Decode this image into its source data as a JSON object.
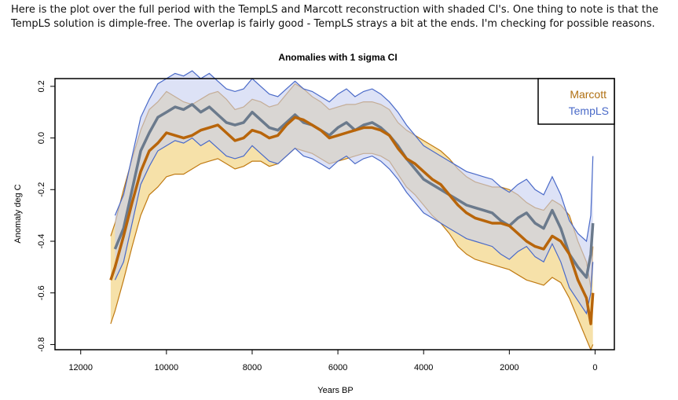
{
  "intro_text": "Here is the plot over the full period with the TempLS and Marcott reconstruction with shaded CI's. One thing to note is that the TempLS solution is dimple-free. The overlap is fairly good - TempLS strays a bit at the ends. I'm checking for possible reasons.",
  "chart_data": {
    "type": "line",
    "title": "Anomalies with 1 sigma CI",
    "xlabel": "Years BP",
    "ylabel": "Anomaly deg C",
    "xlim": [
      12600,
      -450
    ],
    "ylim": [
      -0.82,
      0.23
    ],
    "x_ticks": [
      12000,
      10000,
      8000,
      6000,
      4000,
      2000,
      0
    ],
    "x_tick_labels": [
      "12000",
      "10000",
      "8000",
      "6000",
      "4000",
      "2000",
      "0"
    ],
    "y_ticks": [
      0.2,
      0.0,
      -0.2,
      -0.4,
      -0.6,
      -0.8
    ],
    "y_tick_labels": [
      "0.2",
      "0.0",
      "-0.2",
      "-0.4",
      "-0.6",
      "-0.8"
    ],
    "grid": false,
    "legend_position": "top-right",
    "series": [
      {
        "name": "Marcott",
        "color": "#b8650a",
        "band_fill": "#f5dc9a",
        "band_edge": "#c07a12",
        "x": [
          11300,
          11200,
          11000,
          10800,
          10600,
          10400,
          10200,
          10000,
          9800,
          9600,
          9400,
          9200,
          9000,
          8800,
          8600,
          8400,
          8200,
          8000,
          7800,
          7600,
          7400,
          7200,
          7000,
          6800,
          6600,
          6400,
          6200,
          6000,
          5800,
          5600,
          5400,
          5200,
          5000,
          4800,
          4600,
          4400,
          4200,
          4000,
          3800,
          3600,
          3400,
          3200,
          3000,
          2800,
          2600,
          2400,
          2200,
          2000,
          1800,
          1600,
          1400,
          1200,
          1000,
          800,
          600,
          400,
          200,
          100,
          50
        ],
        "values": [
          -0.55,
          -0.5,
          -0.38,
          -0.25,
          -0.13,
          -0.05,
          -0.02,
          0.02,
          0.01,
          0.0,
          0.01,
          0.03,
          0.04,
          0.05,
          0.02,
          -0.01,
          0.0,
          0.03,
          0.02,
          0.0,
          0.01,
          0.05,
          0.08,
          0.07,
          0.05,
          0.03,
          0.0,
          0.01,
          0.02,
          0.03,
          0.04,
          0.04,
          0.03,
          0.01,
          -0.04,
          -0.08,
          -0.1,
          -0.13,
          -0.16,
          -0.18,
          -0.22,
          -0.26,
          -0.29,
          -0.31,
          -0.32,
          -0.33,
          -0.33,
          -0.34,
          -0.37,
          -0.4,
          -0.42,
          -0.43,
          -0.38,
          -0.4,
          -0.45,
          -0.55,
          -0.62,
          -0.72,
          -0.6
        ],
        "lower": [
          -0.72,
          -0.67,
          -0.55,
          -0.42,
          -0.3,
          -0.22,
          -0.19,
          -0.15,
          -0.14,
          -0.14,
          -0.12,
          -0.1,
          -0.09,
          -0.08,
          -0.1,
          -0.12,
          -0.11,
          -0.09,
          -0.09,
          -0.11,
          -0.1,
          -0.07,
          -0.04,
          -0.05,
          -0.06,
          -0.08,
          -0.1,
          -0.09,
          -0.08,
          -0.07,
          -0.06,
          -0.06,
          -0.07,
          -0.09,
          -0.14,
          -0.19,
          -0.22,
          -0.26,
          -0.3,
          -0.33,
          -0.37,
          -0.42,
          -0.45,
          -0.47,
          -0.48,
          -0.49,
          -0.5,
          -0.51,
          -0.53,
          -0.55,
          -0.56,
          -0.57,
          -0.54,
          -0.56,
          -0.62,
          -0.7,
          -0.78,
          -0.82,
          -0.8
        ],
        "upper": [
          -0.38,
          -0.33,
          -0.2,
          -0.08,
          0.03,
          0.11,
          0.14,
          0.18,
          0.16,
          0.14,
          0.13,
          0.15,
          0.17,
          0.18,
          0.15,
          0.11,
          0.12,
          0.15,
          0.14,
          0.12,
          0.13,
          0.17,
          0.21,
          0.19,
          0.16,
          0.14,
          0.11,
          0.12,
          0.13,
          0.13,
          0.14,
          0.14,
          0.13,
          0.11,
          0.06,
          0.03,
          0.01,
          -0.01,
          -0.03,
          -0.05,
          -0.08,
          -0.12,
          -0.15,
          -0.17,
          -0.18,
          -0.19,
          -0.19,
          -0.2,
          -0.22,
          -0.25,
          -0.27,
          -0.28,
          -0.24,
          -0.26,
          -0.3,
          -0.4,
          -0.48,
          -0.58,
          -0.42
        ]
      },
      {
        "name": "TempLS",
        "color": "#6b7a8c",
        "band_fill": "#c6cff0",
        "band_edge": "#4a6ac8",
        "x": [
          11200,
          11000,
          10800,
          10600,
          10400,
          10200,
          10000,
          9800,
          9600,
          9400,
          9200,
          9000,
          8800,
          8600,
          8400,
          8200,
          8000,
          7800,
          7600,
          7400,
          7200,
          7000,
          6800,
          6600,
          6400,
          6200,
          6000,
          5800,
          5600,
          5400,
          5200,
          5000,
          4800,
          4600,
          4400,
          4200,
          4000,
          3800,
          3600,
          3400,
          3200,
          3000,
          2800,
          2600,
          2400,
          2200,
          2000,
          1800,
          1600,
          1400,
          1200,
          1000,
          800,
          600,
          400,
          200,
          100,
          50
        ],
        "values": [
          -0.43,
          -0.35,
          -0.2,
          -0.05,
          0.02,
          0.08,
          0.1,
          0.12,
          0.11,
          0.13,
          0.1,
          0.12,
          0.09,
          0.06,
          0.05,
          0.06,
          0.1,
          0.07,
          0.04,
          0.03,
          0.06,
          0.09,
          0.06,
          0.05,
          0.03,
          0.01,
          0.04,
          0.06,
          0.03,
          0.05,
          0.06,
          0.04,
          0.01,
          -0.03,
          -0.08,
          -0.12,
          -0.16,
          -0.18,
          -0.2,
          -0.22,
          -0.24,
          -0.26,
          -0.27,
          -0.28,
          -0.29,
          -0.32,
          -0.34,
          -0.31,
          -0.29,
          -0.33,
          -0.35,
          -0.28,
          -0.35,
          -0.45,
          -0.5,
          -0.54,
          -0.45,
          -0.33
        ],
        "lower": [
          -0.55,
          -0.48,
          -0.33,
          -0.18,
          -0.11,
          -0.05,
          -0.03,
          -0.01,
          -0.02,
          0.0,
          -0.03,
          -0.01,
          -0.04,
          -0.07,
          -0.08,
          -0.07,
          -0.03,
          -0.06,
          -0.09,
          -0.1,
          -0.07,
          -0.04,
          -0.07,
          -0.08,
          -0.1,
          -0.12,
          -0.09,
          -0.07,
          -0.1,
          -0.08,
          -0.07,
          -0.09,
          -0.12,
          -0.16,
          -0.21,
          -0.25,
          -0.29,
          -0.31,
          -0.33,
          -0.35,
          -0.37,
          -0.39,
          -0.4,
          -0.41,
          -0.42,
          -0.45,
          -0.47,
          -0.44,
          -0.42,
          -0.46,
          -0.48,
          -0.41,
          -0.48,
          -0.58,
          -0.63,
          -0.68,
          -0.6,
          -0.48
        ],
        "upper": [
          -0.3,
          -0.22,
          -0.07,
          0.08,
          0.15,
          0.21,
          0.23,
          0.25,
          0.24,
          0.26,
          0.23,
          0.25,
          0.22,
          0.19,
          0.18,
          0.19,
          0.23,
          0.2,
          0.17,
          0.16,
          0.19,
          0.22,
          0.19,
          0.18,
          0.16,
          0.14,
          0.17,
          0.19,
          0.16,
          0.18,
          0.19,
          0.17,
          0.14,
          0.1,
          0.05,
          0.01,
          -0.03,
          -0.05,
          -0.07,
          -0.09,
          -0.11,
          -0.13,
          -0.14,
          -0.15,
          -0.16,
          -0.19,
          -0.21,
          -0.18,
          -0.16,
          -0.2,
          -0.22,
          -0.15,
          -0.22,
          -0.32,
          -0.37,
          -0.4,
          -0.3,
          -0.07
        ]
      }
    ]
  }
}
